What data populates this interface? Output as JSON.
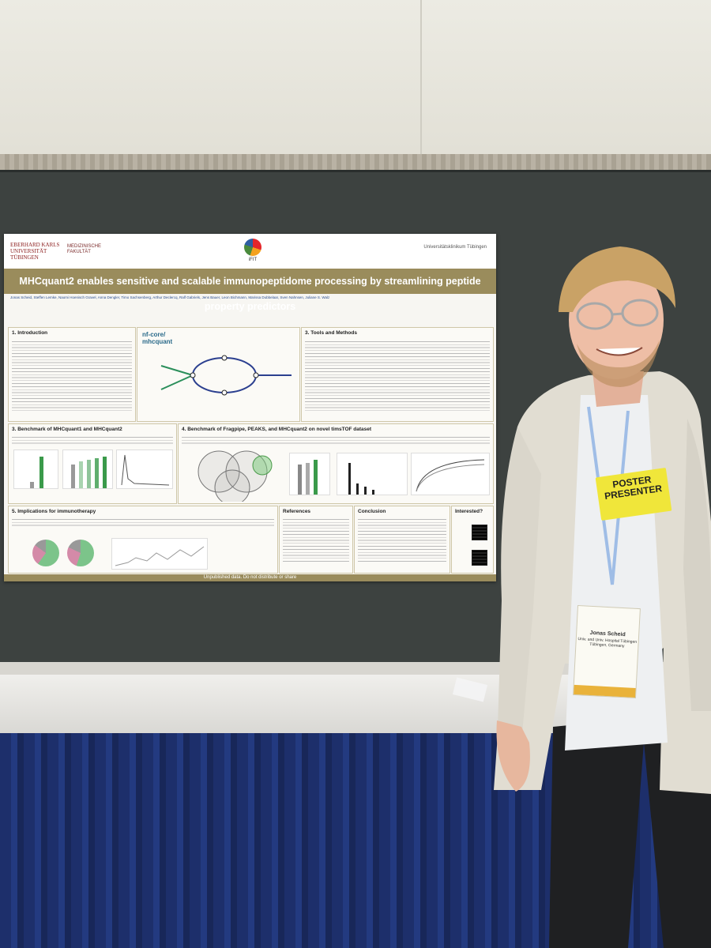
{
  "poster": {
    "logo_left": "EBERHARD KARLS UNIVERSITÄT TÜBINGEN",
    "logo_left2": "MEDIZINISCHE FAKULTÄT",
    "logo_center": "iFIT",
    "logo_right": "Universitätsklinikum Tübingen",
    "title": "MHCquant2 enables sensitive and scalable immunopeptidome processing by streamlining peptide property predictors",
    "authors": "Jonas Scheid, Steffen Lemke, Naomi Hoenisch Gravel, Anna Dengler, Timo Sachsenberg, Arthur Declercq, Ralf Gabriels, Jens Bauer, Leon Bichmann, Marissa Dubbelaar, Sven Nahnsen, Juliane S. Walz",
    "sections": {
      "intro": "1. Introduction",
      "tools": "3. Tools and Methods",
      "bench1": "3. Benchmark of MHCquant1 and MHCquant2",
      "bench2": "4. Benchmark of Fragpipe, PEAKS, and MHCquant2 on novel timsTOF dataset",
      "implications": "5. Implications for immunotherapy",
      "references": "References",
      "conclusion": "Conclusion",
      "interested": "Interested?"
    },
    "nfcore_label": "nf-core/ mhcquant",
    "footer": "Unpublished data. Do not distribute or share"
  },
  "badges": {
    "presenter_line1": "POSTER",
    "presenter_line2": "PRESENTER",
    "name": "Jonas Scheid",
    "affiliation": "Univ. and Univ. Hospital Tübingen Tübingen, Germany"
  }
}
